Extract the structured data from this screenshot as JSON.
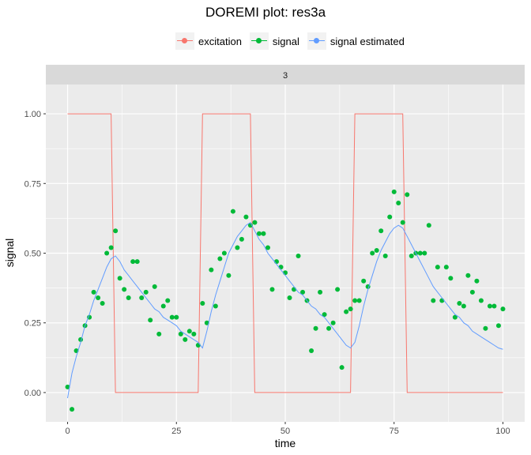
{
  "chart_data": {
    "type": "line",
    "title": "DOREMI plot: res3a",
    "facet_label": "3",
    "xlabel": "time",
    "ylabel": "signal",
    "xlim": [
      -5,
      105
    ],
    "ylim": [
      -0.105,
      1.105
    ],
    "x_ticks": [
      0,
      25,
      50,
      75,
      100
    ],
    "y_ticks": [
      0.0,
      0.25,
      0.5,
      0.75,
      1.0
    ],
    "x_tick_labels": [
      "0",
      "25",
      "50",
      "75",
      "100"
    ],
    "y_tick_labels": [
      "0.00",
      "0.25",
      "0.50",
      "0.75",
      "1.00"
    ],
    "grid": true,
    "legend_position": "top",
    "colors": {
      "excitation": "#F8766D",
      "signal": "#00BA38",
      "signal estimated": "#619CFF"
    },
    "legend": [
      "excitation",
      "signal",
      "signal estimated"
    ],
    "series": [
      {
        "name": "excitation",
        "kind": "step",
        "x": [
          0,
          10,
          11,
          30,
          31,
          42,
          43,
          65,
          66,
          77,
          78,
          100
        ],
        "y": [
          1,
          1,
          0,
          0,
          1,
          1,
          0,
          0,
          1,
          1,
          0,
          0
        ]
      },
      {
        "name": "signal",
        "kind": "points",
        "x": [
          0,
          1,
          2,
          3,
          4,
          5,
          6,
          7,
          8,
          9,
          10,
          11,
          12,
          13,
          14,
          15,
          16,
          17,
          18,
          19,
          20,
          21,
          22,
          23,
          24,
          25,
          26,
          27,
          28,
          29,
          30,
          31,
          32,
          33,
          34,
          35,
          36,
          37,
          38,
          39,
          40,
          41,
          42,
          43,
          44,
          45,
          46,
          47,
          48,
          49,
          50,
          51,
          52,
          53,
          54,
          55,
          56,
          57,
          58,
          59,
          60,
          61,
          62,
          63,
          64,
          65,
          66,
          67,
          68,
          69,
          70,
          71,
          72,
          73,
          74,
          75,
          76,
          77,
          78,
          79,
          80,
          81,
          82,
          83,
          84,
          85,
          86,
          87,
          88,
          89,
          90,
          91,
          92,
          93,
          94,
          95,
          96,
          97,
          98,
          99,
          100
        ],
        "y": [
          0.02,
          -0.06,
          0.15,
          0.19,
          0.24,
          0.27,
          0.36,
          0.34,
          0.32,
          0.5,
          0.52,
          0.58,
          0.41,
          0.37,
          0.34,
          0.47,
          0.47,
          0.34,
          0.36,
          0.26,
          0.38,
          0.21,
          0.31,
          0.33,
          0.27,
          0.27,
          0.21,
          0.19,
          0.22,
          0.21,
          0.17,
          0.32,
          0.25,
          0.44,
          0.31,
          0.48,
          0.5,
          0.42,
          0.65,
          0.52,
          0.55,
          0.63,
          0.6,
          0.61,
          0.57,
          0.57,
          0.52,
          0.37,
          0.47,
          0.45,
          0.43,
          0.34,
          0.37,
          0.49,
          0.36,
          0.33,
          0.15,
          0.23,
          0.36,
          0.28,
          0.23,
          0.25,
          0.37,
          0.09,
          0.29,
          0.3,
          0.33,
          0.33,
          0.4,
          0.38,
          0.5,
          0.51,
          0.58,
          0.49,
          0.63,
          0.72,
          0.68,
          0.61,
          0.71,
          0.49,
          0.5,
          0.5,
          0.5,
          0.6,
          0.33,
          0.45,
          0.33,
          0.45,
          0.41,
          0.27,
          0.32,
          0.31,
          0.42,
          0.36,
          0.4,
          0.33,
          0.23,
          0.31,
          0.31,
          0.24,
          0.3
        ]
      },
      {
        "name": "signal estimated",
        "kind": "line",
        "x": [
          0,
          1,
          2,
          3,
          4,
          5,
          6,
          7,
          8,
          9,
          10,
          11,
          12,
          13,
          14,
          15,
          16,
          17,
          18,
          19,
          20,
          21,
          22,
          23,
          24,
          25,
          26,
          27,
          28,
          29,
          30,
          31,
          32,
          33,
          34,
          35,
          36,
          37,
          38,
          39,
          40,
          41,
          42,
          43,
          44,
          45,
          46,
          47,
          48,
          49,
          50,
          51,
          52,
          53,
          54,
          55,
          56,
          57,
          58,
          59,
          60,
          61,
          62,
          63,
          64,
          65,
          66,
          67,
          68,
          69,
          70,
          71,
          72,
          73,
          74,
          75,
          76,
          77,
          78,
          79,
          80,
          81,
          82,
          83,
          84,
          85,
          86,
          87,
          88,
          89,
          90,
          91,
          92,
          93,
          94,
          95,
          96,
          97,
          98,
          99,
          100
        ],
        "y": [
          -0.02,
          0.07,
          0.13,
          0.18,
          0.24,
          0.28,
          0.33,
          0.37,
          0.41,
          0.45,
          0.48,
          0.49,
          0.47,
          0.44,
          0.42,
          0.4,
          0.38,
          0.36,
          0.34,
          0.32,
          0.3,
          0.29,
          0.27,
          0.26,
          0.25,
          0.24,
          0.22,
          0.21,
          0.2,
          0.19,
          0.18,
          0.16,
          0.22,
          0.29,
          0.35,
          0.4,
          0.45,
          0.5,
          0.53,
          0.56,
          0.58,
          0.6,
          0.61,
          0.58,
          0.55,
          0.53,
          0.5,
          0.48,
          0.46,
          0.44,
          0.42,
          0.4,
          0.38,
          0.36,
          0.35,
          0.33,
          0.31,
          0.3,
          0.28,
          0.27,
          0.25,
          0.23,
          0.21,
          0.19,
          0.17,
          0.16,
          0.18,
          0.24,
          0.31,
          0.37,
          0.42,
          0.47,
          0.51,
          0.54,
          0.57,
          0.59,
          0.6,
          0.59,
          0.56,
          0.53,
          0.5,
          0.47,
          0.44,
          0.41,
          0.38,
          0.36,
          0.34,
          0.32,
          0.3,
          0.28,
          0.27,
          0.25,
          0.24,
          0.22,
          0.21,
          0.2,
          0.19,
          0.18,
          0.17,
          0.16,
          0.155
        ]
      }
    ]
  }
}
